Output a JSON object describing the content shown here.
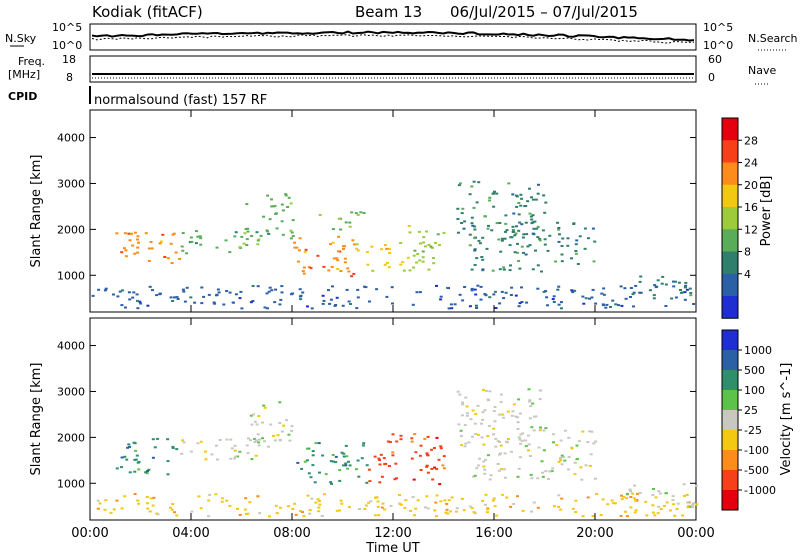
{
  "header": {
    "station": "Kodiak (fitACF)",
    "beam": "Beam 13",
    "dates": "06/Jul/2015 – 07/Jul/2015"
  },
  "top_strip": {
    "left_label": "N.Sky",
    "left_ticks": [
      "10^5",
      "10^0"
    ],
    "right_label": "N.Search",
    "right_ticks": [
      "10^5",
      "10^0"
    ]
  },
  "freq_strip": {
    "left_label_top": "Freq.",
    "left_label_unit": "[MHz]",
    "left_ticks": [
      "18",
      "8"
    ],
    "right_label": "Nave",
    "right_ticks": [
      "60",
      "0"
    ]
  },
  "cpid": {
    "label": "CPID",
    "text": "normalsound (fast) 157 RF"
  },
  "chart_data": [
    {
      "type": "heatmap",
      "title": "",
      "ylabel": "Slant Range [km]",
      "xlabel": "",
      "yticks": [
        1000,
        2000,
        3000,
        4000
      ],
      "ylim": [
        200,
        4600
      ],
      "xlim": [
        0,
        24
      ],
      "colorbar_label": "Power [dB]",
      "colorbar_ticks": [
        "28",
        "24",
        "20",
        "16",
        "12",
        "8",
        "4"
      ],
      "colorbar_colors": [
        "#e4000e",
        "#f5401a",
        "#fd8c1c",
        "#f3c812",
        "#9ccb3c",
        "#5aac58",
        "#2f7f6c",
        "#2b5fa6",
        "#1f2ed0"
      ],
      "echo_regions": [
        {
          "t0": 1.0,
          "t1": 3.5,
          "r0": 1200,
          "r1": 2000,
          "level": 24
        },
        {
          "t0": 3.5,
          "t1": 7.0,
          "r0": 1500,
          "r1": 2000,
          "level": 12
        },
        {
          "t0": 6.0,
          "t1": 8.0,
          "r0": 1800,
          "r1": 2800,
          "level": 12
        },
        {
          "t0": 8.0,
          "t1": 10.5,
          "r0": 1000,
          "r1": 1900,
          "level": 24
        },
        {
          "t0": 10.5,
          "t1": 12.0,
          "r0": 1100,
          "r1": 1700,
          "level": 20
        },
        {
          "t0": 12.0,
          "t1": 14.0,
          "r0": 1100,
          "r1": 2100,
          "level": 16
        },
        {
          "t0": 9.0,
          "t1": 11.0,
          "r0": 2000,
          "r1": 2400,
          "level": 12
        },
        {
          "t0": 14.5,
          "t1": 18.0,
          "r0": 1800,
          "r1": 3100,
          "level": 8
        },
        {
          "t0": 15.0,
          "t1": 20.0,
          "r0": 1100,
          "r1": 2200,
          "level": 8
        },
        {
          "t0": 0.0,
          "t1": 24.0,
          "r0": 300,
          "r1": 800,
          "level": 4
        },
        {
          "t0": 21.0,
          "t1": 24.0,
          "r0": 500,
          "r1": 1000,
          "level": 8
        }
      ]
    },
    {
      "type": "heatmap",
      "title": "",
      "ylabel": "Slant Range [km]",
      "xlabel": "Time UT",
      "yticks": [
        1000,
        2000,
        3000,
        4000
      ],
      "ylim": [
        200,
        4600
      ],
      "xlim": [
        0,
        24
      ],
      "xticks": [
        "00:00",
        "04:00",
        "08:00",
        "12:00",
        "16:00",
        "20:00",
        "00:00"
      ],
      "colorbar_label": "Velocity [m s^-1]",
      "colorbar_ticks": [
        "1000",
        "500",
        "100",
        "25",
        "-25",
        "-100",
        "-500",
        "-1000"
      ],
      "colorbar_colors": [
        "#1f2ed0",
        "#2b5fa6",
        "#2f8f6c",
        "#5cc24a",
        "#c8c8c0",
        "#f3c812",
        "#fd8c1c",
        "#f5401a",
        "#e4000e"
      ],
      "echo_regions": [
        {
          "t0": 1.0,
          "t1": 3.5,
          "r0": 1200,
          "r1": 2000,
          "level": 100
        },
        {
          "t0": 3.5,
          "t1": 7.0,
          "r0": 1500,
          "r1": 2000,
          "level": 0
        },
        {
          "t0": 6.0,
          "t1": 8.0,
          "r0": 1800,
          "r1": 2800,
          "level": 0
        },
        {
          "t0": 8.0,
          "t1": 11.0,
          "r0": 1000,
          "r1": 1900,
          "level": 100
        },
        {
          "t0": 11.0,
          "t1": 14.0,
          "r0": 1000,
          "r1": 2100,
          "level": -300
        },
        {
          "t0": 14.5,
          "t1": 18.0,
          "r0": 1800,
          "r1": 3100,
          "level": 0
        },
        {
          "t0": 15.0,
          "t1": 20.0,
          "r0": 1100,
          "r1": 2200,
          "level": 0
        },
        {
          "t0": 0.0,
          "t1": 24.0,
          "r0": 300,
          "r1": 800,
          "level": -40
        },
        {
          "t0": 21.0,
          "t1": 24.0,
          "r0": 500,
          "r1": 1000,
          "level": 0
        }
      ]
    }
  ]
}
